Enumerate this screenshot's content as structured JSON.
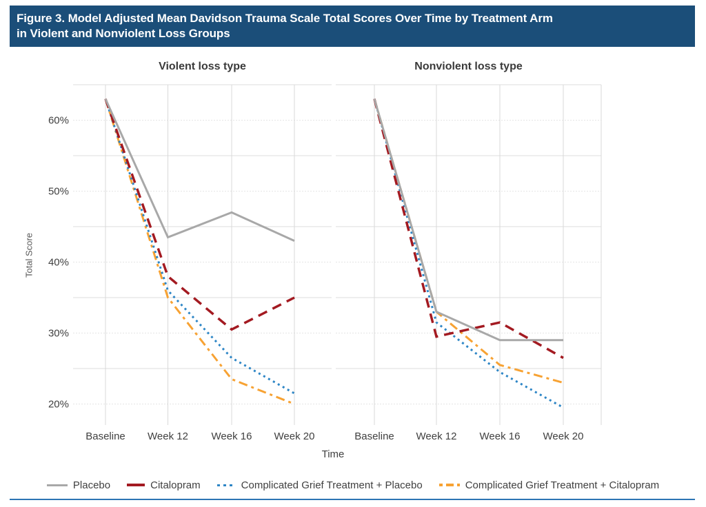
{
  "header": {
    "title_line1": "Figure 3. Model Adjusted Mean Davidson Trauma Scale Total Scores Over Time by Treatment Arm",
    "title_line2": "in Violent and Nonviolent Loss Groups",
    "bg_color": "#1B4E79"
  },
  "colors": {
    "placebo": "#A8A8A8",
    "citalopram": "#A31A21",
    "cgt_placebo": "#2E86C6",
    "cgt_citalopram": "#F7A233",
    "gridline": "#DEDEDE",
    "tick_text": "#404040",
    "bottom_rule": "#2C74B4"
  },
  "chart_data": {
    "type": "line",
    "categories": [
      "Baseline",
      "Week 12",
      "Week 16",
      "Week 20"
    ],
    "xlabel": "Time",
    "ylabel": "Total Score",
    "ylim": [
      15,
      65
    ],
    "yticks": [
      20,
      30,
      40,
      50,
      60
    ],
    "ytick_suffix": "%",
    "grid": true,
    "legend_position": "bottom",
    "panels": [
      {
        "title": "Violent loss type",
        "series": [
          {
            "name": "Placebo",
            "color": "#A8A8A8",
            "style": "solid",
            "width": 3,
            "values": [
              63,
              43.5,
              47,
              43
            ]
          },
          {
            "name": "Citalopram",
            "color": "#A31A21",
            "style": "dashed",
            "width": 3.5,
            "values": [
              63,
              38,
              30.5,
              35
            ]
          },
          {
            "name": "Complicated Grief Treatment + Placebo",
            "color": "#2E86C6",
            "style": "dotted",
            "width": 3,
            "values": [
              63,
              36,
              26.5,
              21.5
            ]
          },
          {
            "name": "Complicated Grief Treatment + Citalopram",
            "color": "#F7A233",
            "style": "dashdot",
            "width": 3,
            "values": [
              63,
              35,
              23.5,
              20
            ]
          }
        ]
      },
      {
        "title": "Nonviolent loss type",
        "series": [
          {
            "name": "Placebo",
            "color": "#A8A8A8",
            "style": "solid",
            "width": 3,
            "values": [
              63,
              33,
              29,
              29
            ]
          },
          {
            "name": "Citalopram",
            "color": "#A31A21",
            "style": "dashed",
            "width": 3.5,
            "values": [
              63,
              29.5,
              31.5,
              26.5
            ]
          },
          {
            "name": "Complicated Grief Treatment + Placebo",
            "color": "#2E86C6",
            "style": "dotted",
            "width": 3,
            "values": [
              63,
              31.5,
              24.5,
              19.5
            ]
          },
          {
            "name": "Complicated Grief Treatment + Citalopram",
            "color": "#F7A233",
            "style": "dashdot",
            "width": 3,
            "values": [
              63,
              33,
              25.5,
              23
            ]
          }
        ]
      }
    ]
  },
  "legend": {
    "items": [
      "Placebo",
      "Citalopram",
      "Complicated Grief Treatment + Placebo",
      "Complicated Grief Treatment + Citalopram"
    ]
  }
}
